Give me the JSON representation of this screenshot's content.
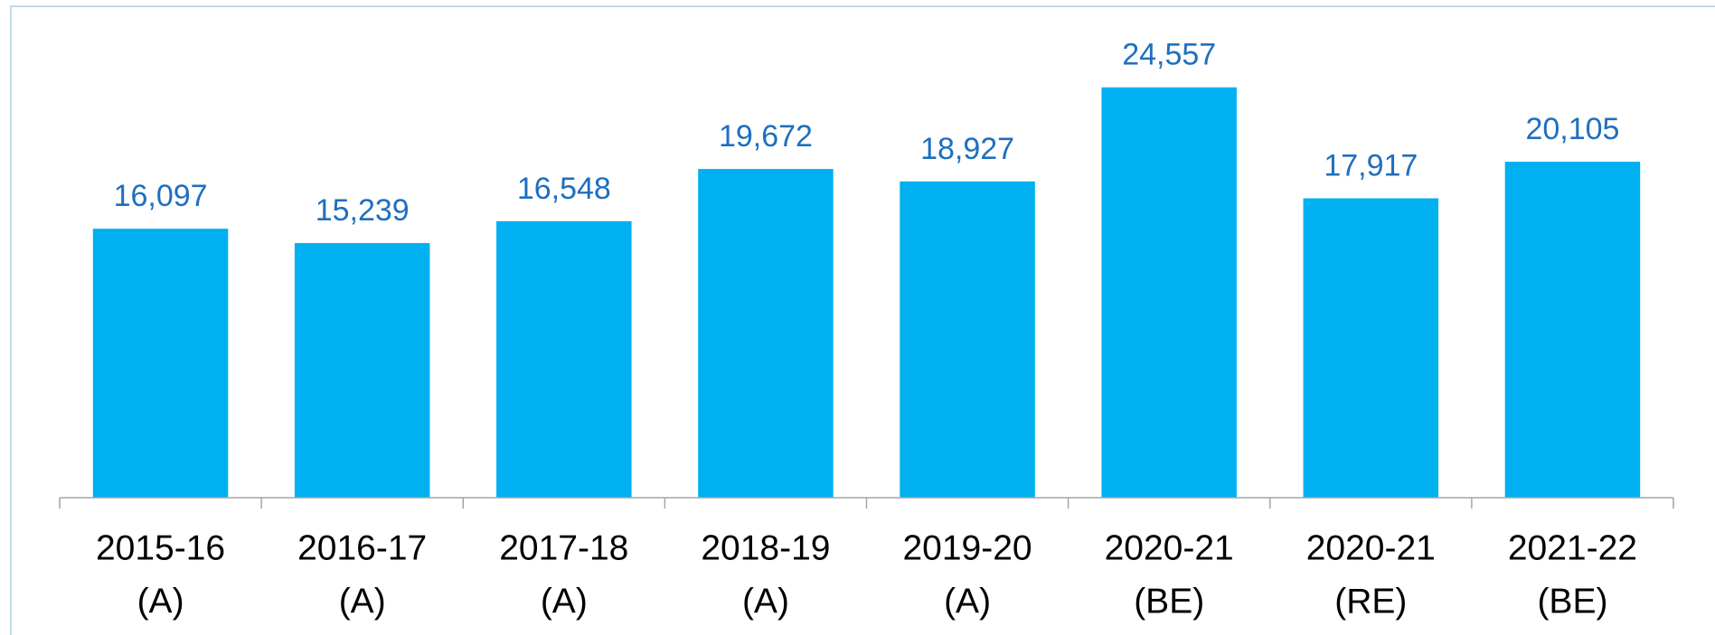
{
  "chart_data": {
    "type": "bar",
    "categories": [
      [
        "2015-16",
        "(A)"
      ],
      [
        "2016-17",
        "(A)"
      ],
      [
        "2017-18",
        "(A)"
      ],
      [
        "2018-19",
        "(A)"
      ],
      [
        "2019-20",
        "(A)"
      ],
      [
        "2020-21",
        "(BE)"
      ],
      [
        "2020-21",
        "(RE)"
      ],
      [
        "2021-22",
        "(BE)"
      ]
    ],
    "values": [
      16097,
      15239,
      16548,
      19672,
      18927,
      24557,
      17917,
      20105
    ],
    "value_labels": [
      "16,097",
      "15,239",
      "16,548",
      "19,672",
      "18,927",
      "24,557",
      "17,917",
      "20,105"
    ],
    "color": "#00b0f0",
    "label_color": "#1f6fbf",
    "ylim": [
      0,
      26000
    ]
  }
}
